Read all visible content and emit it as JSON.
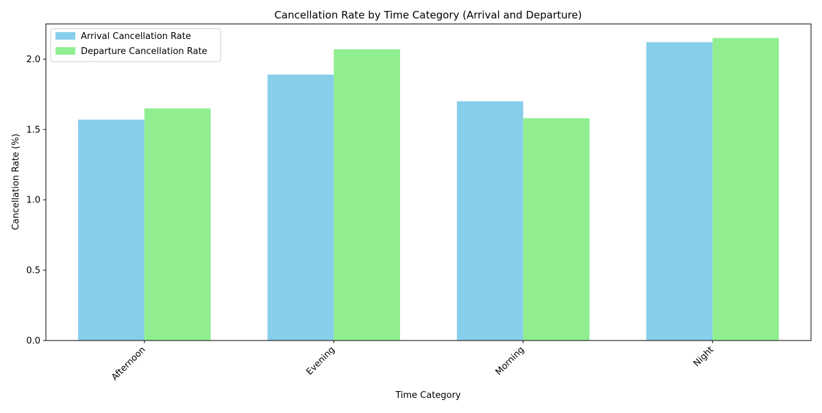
{
  "chart_data": {
    "type": "bar",
    "title": "Cancellation Rate by Time Category (Arrival and Departure)",
    "xlabel": "Time Category",
    "ylabel": "Cancellation Rate (%)",
    "categories": [
      "Afternoon",
      "Evening",
      "Morning",
      "Night"
    ],
    "series": [
      {
        "name": "Arrival Cancellation Rate",
        "values": [
          1.57,
          1.89,
          1.7,
          2.12
        ],
        "color": "#87ceeb"
      },
      {
        "name": "Departure Cancellation Rate",
        "values": [
          1.65,
          2.07,
          1.58,
          2.15
        ],
        "color": "#90ee90"
      }
    ],
    "ylim": [
      0,
      2.25
    ],
    "yticks": [
      "0.0",
      "0.5",
      "1.0",
      "1.5",
      "2.0"
    ],
    "grid": false,
    "legend_position": "top-left",
    "x_tick_rotation": "45 degrees"
  }
}
